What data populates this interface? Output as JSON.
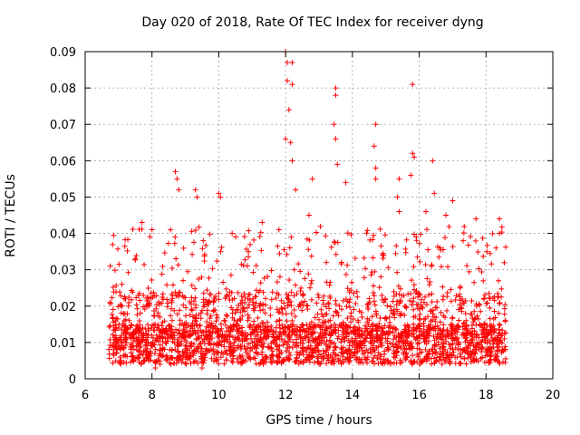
{
  "chart_data": {
    "type": "scatter",
    "title": "Day 020 of 2018, Rate Of TEC Index for receiver dyng",
    "xlabel": "GPS time / hours",
    "ylabel": "ROTI / TECUs",
    "xlim": [
      6,
      20
    ],
    "ylim": [
      0,
      0.09
    ],
    "x_ticks": [
      "6",
      "8",
      "10",
      "12",
      "14",
      "16",
      "18",
      "20"
    ],
    "y_ticks": [
      "0",
      "0.01",
      "0.02",
      "0.03",
      "0.04",
      "0.05",
      "0.06",
      "0.07",
      "0.08",
      "0.09"
    ],
    "grid": true,
    "marker": "plus",
    "color": "#ff0000",
    "series": [
      {
        "name": "ROTI",
        "description": "Dense scatter between ~6.7 h and ~18.6 h; bulk of values 0.005–0.03 TECU, notable peaks listed as points",
        "x_range": [
          6.7,
          18.6
        ],
        "typical_range": [
          0.004,
          0.03
        ],
        "points": [
          [
            6.75,
            0.031
          ],
          [
            7.1,
            0.026
          ],
          [
            7.5,
            0.033
          ],
          [
            7.7,
            0.043
          ],
          [
            8.0,
            0.041
          ],
          [
            8.7,
            0.057
          ],
          [
            8.75,
            0.055
          ],
          [
            8.8,
            0.052
          ],
          [
            9.3,
            0.052
          ],
          [
            9.35,
            0.05
          ],
          [
            10.0,
            0.051
          ],
          [
            10.05,
            0.05
          ],
          [
            10.4,
            0.04
          ],
          [
            11.3,
            0.043
          ],
          [
            11.8,
            0.041
          ],
          [
            12.0,
            0.09
          ],
          [
            12.05,
            0.087
          ],
          [
            12.2,
            0.087
          ],
          [
            12.05,
            0.082
          ],
          [
            12.2,
            0.081
          ],
          [
            12.1,
            0.074
          ],
          [
            12.0,
            0.066
          ],
          [
            12.15,
            0.065
          ],
          [
            12.2,
            0.06
          ],
          [
            12.3,
            0.052
          ],
          [
            12.8,
            0.055
          ],
          [
            12.7,
            0.045
          ],
          [
            13.5,
            0.08
          ],
          [
            13.5,
            0.078
          ],
          [
            13.45,
            0.07
          ],
          [
            13.5,
            0.066
          ],
          [
            13.55,
            0.059
          ],
          [
            13.8,
            0.054
          ],
          [
            14.7,
            0.07
          ],
          [
            14.65,
            0.064
          ],
          [
            14.7,
            0.058
          ],
          [
            14.7,
            0.055
          ],
          [
            15.4,
            0.055
          ],
          [
            15.35,
            0.05
          ],
          [
            15.4,
            0.046
          ],
          [
            15.8,
            0.081
          ],
          [
            15.8,
            0.062
          ],
          [
            15.85,
            0.061
          ],
          [
            15.75,
            0.056
          ],
          [
            16.2,
            0.046
          ],
          [
            16.4,
            0.06
          ],
          [
            16.45,
            0.051
          ],
          [
            16.8,
            0.045
          ],
          [
            17.0,
            0.049
          ],
          [
            17.7,
            0.044
          ],
          [
            18.4,
            0.044
          ],
          [
            18.4,
            0.04
          ],
          [
            18.3,
            0.036
          ],
          [
            9.5,
            0.003
          ],
          [
            8.1,
            0.003
          ]
        ]
      }
    ]
  }
}
